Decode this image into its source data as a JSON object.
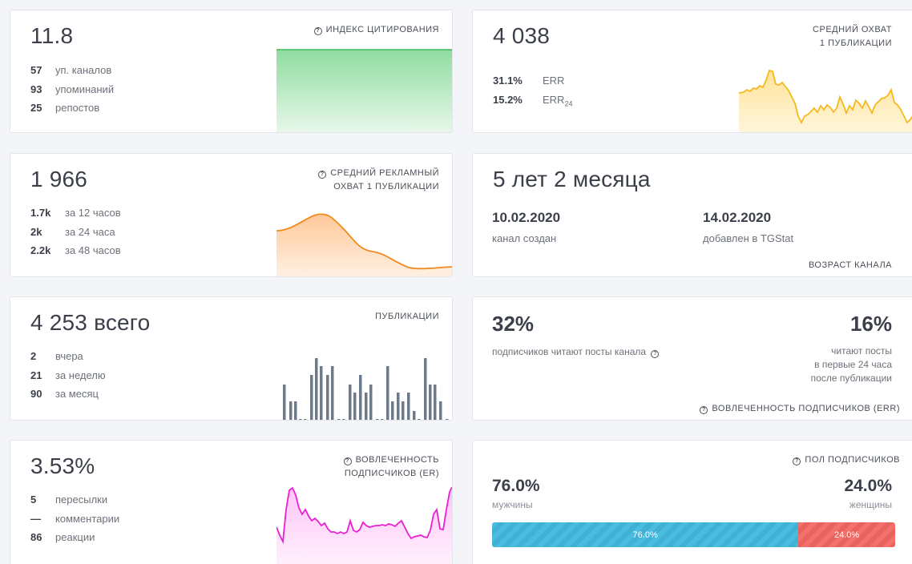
{
  "citation": {
    "value": "11.8",
    "label": "ИНДЕКС ЦИТИРОВАНИЯ",
    "stats": [
      {
        "num": "57",
        "text": "уп. каналов"
      },
      {
        "num": "93",
        "text": "упоминаний"
      },
      {
        "num": "25",
        "text": "репостов"
      }
    ]
  },
  "avg_reach": {
    "value": "4 038",
    "label_line1": "СРЕДНИЙ ОХВАТ",
    "label_line2": "1 ПУБЛИКАЦИИ",
    "err_value": "31.1%",
    "err_label": "ERR",
    "err24_value": "15.2%",
    "err24_label": "ERR",
    "err24_sub": "24"
  },
  "ad_reach": {
    "value": "1 966",
    "label_line1": "СРЕДНИЙ РЕКЛАМНЫЙ",
    "label_line2": "ОХВАТ 1 ПУБЛИКАЦИИ",
    "stats": [
      {
        "num": "1.7k",
        "text": "за 12 часов"
      },
      {
        "num": "2k",
        "text": "за 24 часа"
      },
      {
        "num": "2.2k",
        "text": "за 48 часов"
      }
    ]
  },
  "age": {
    "value": "5 лет 2 месяца",
    "created_date": "10.02.2020",
    "created_label": "канал создан",
    "added_date": "14.02.2020",
    "added_label": "добавлен в TGStat",
    "label": "ВОЗРАСТ КАНАЛА"
  },
  "posts": {
    "value": "4 253",
    "suffix": "всего",
    "label": "ПУБЛИКАЦИИ",
    "stats": [
      {
        "num": "2",
        "text": "вчера"
      },
      {
        "num": "21",
        "text": "за неделю"
      },
      {
        "num": "90",
        "text": "за месяц"
      }
    ]
  },
  "err": {
    "left_value": "32%",
    "left_text": "подписчиков читают посты канала",
    "right_value": "16%",
    "right_line1": "читают посты",
    "right_line2": "в первые 24 часа",
    "right_line3": "после публикации",
    "label": "ВОВЛЕЧЕННОСТЬ ПОДПИСЧИКОВ (ERR)"
  },
  "er": {
    "value": "3.53%",
    "label_line1": "ВОВЛЕЧЕННОСТЬ",
    "label_line2": "ПОДПИСЧИКОВ (ER)",
    "stats": [
      {
        "num": "5",
        "text": "пересылки"
      },
      {
        "num": "—",
        "text": "комментарии"
      },
      {
        "num": "86",
        "text": "реакции"
      }
    ]
  },
  "gender": {
    "label": "ПОЛ ПОДПИСЧИКОВ",
    "male_value": "76.0%",
    "male_label": "мужчины",
    "female_value": "24.0%",
    "female_label": "женщины",
    "male_fraction": 0.76,
    "female_fraction": 0.24,
    "male_bar_text": "76.0%",
    "female_bar_text": "24.0%"
  },
  "colors": {
    "citation_fill": "#8fdc9f",
    "citation_line": "#3dbb55",
    "reach_fill": "#ffe39a",
    "reach_line": "#f5b91c",
    "ad_fill": "#ffc899",
    "ad_line": "#f08a1c",
    "posts_bar": "#6b7a8c",
    "er_fill": "#ffc4f7",
    "er_line": "#ea1fd5",
    "male": "#4bbcdf",
    "female": "#f3716c"
  }
}
